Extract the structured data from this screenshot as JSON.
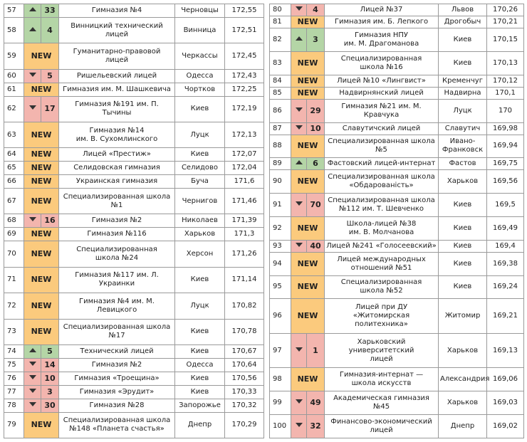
{
  "left": {
    "rows": [
      {
        "rank": 57,
        "trend": "up",
        "change": 33,
        "name": "Гимназия №4",
        "city": "Черновцы",
        "score": "172,55"
      },
      {
        "rank": 58,
        "trend": "up",
        "change": 4,
        "name": "Винницкий технический лицей",
        "city": "Винница",
        "score": "172,51"
      },
      {
        "rank": 59,
        "change": "NEW",
        "name": "Гуманитарно-правовой лицей",
        "city": "Черкассы",
        "score": "172,45"
      },
      {
        "rank": 60,
        "trend": "down",
        "change": 5,
        "name": "Ришельевский лицей",
        "city": "Одесса",
        "score": "172,43"
      },
      {
        "rank": 61,
        "change": "NEW",
        "name": "Гимназия им. М. Шашкевича",
        "city": "Чортков",
        "score": "172,25"
      },
      {
        "rank": 62,
        "trend": "down",
        "change": 17,
        "name": "Гимназия №191 им. П. Тычины",
        "city": "Киев",
        "score": "172,19"
      },
      {
        "rank": 63,
        "change": "NEW",
        "name": "Гимназия №14\nим. В. Сухомлинского",
        "city": "Луцк",
        "score": "172,13"
      },
      {
        "rank": 64,
        "change": "NEW",
        "name": "Лицей «Престиж»",
        "city": "Киев",
        "score": "172,07"
      },
      {
        "rank": 65,
        "change": "NEW",
        "name": "Селидовская гимназия",
        "city": "Селидово",
        "score": "172,04"
      },
      {
        "rank": 66,
        "change": "NEW",
        "name": "Украинская гимназия",
        "city": "Буча",
        "score": "171,6"
      },
      {
        "rank": 67,
        "change": "NEW",
        "name": "Специализированная школа №1",
        "city": "Чернигов",
        "score": "171,46"
      },
      {
        "rank": 68,
        "trend": "down",
        "change": 16,
        "name": "Гимназия №2",
        "city": "Николаев",
        "score": "171,39"
      },
      {
        "rank": 69,
        "change": "NEW",
        "name": "Гимназия №116",
        "city": "Харьков",
        "score": "171,3"
      },
      {
        "rank": 70,
        "change": "NEW",
        "name": "Специализированная\nшкола №24",
        "city": "Херсон",
        "score": "171,26"
      },
      {
        "rank": 71,
        "change": "NEW",
        "name": "Гимназия №117 им. Л. Украинки",
        "city": "Киев",
        "score": "171,14"
      },
      {
        "rank": 72,
        "change": "NEW",
        "name": "Гимназия №4 им. М. Левицкого",
        "city": "Луцк",
        "score": "170,82"
      },
      {
        "rank": 73,
        "change": "NEW",
        "name": "Специализированная школа №17",
        "city": "Киев",
        "score": "170,78"
      },
      {
        "rank": 74,
        "trend": "up",
        "change": 5,
        "name": "Технический лицей",
        "city": "Киев",
        "score": "170,67"
      },
      {
        "rank": 75,
        "trend": "down",
        "change": 14,
        "name": "Гимназия №2",
        "city": "Одесса",
        "score": "170,64"
      },
      {
        "rank": 76,
        "trend": "down",
        "change": 10,
        "name": "Гимназия «Троещина»",
        "city": "Киев",
        "score": "170,56"
      },
      {
        "rank": 77,
        "trend": "down",
        "change": 3,
        "name": "Гимназия «Эрудит»",
        "city": "Киев",
        "score": "170,33"
      },
      {
        "rank": 78,
        "trend": "down",
        "change": 30,
        "name": "Гимназия №28",
        "city": "Запорожье",
        "score": "170,32"
      },
      {
        "rank": 79,
        "change": "NEW",
        "name": "Специализированная школа\n№148 «Планета счастья»",
        "city": "Днепр",
        "score": "170,29"
      }
    ]
  },
  "right": {
    "rows": [
      {
        "rank": 80,
        "trend": "down",
        "change": 4,
        "name": "Лицей №37",
        "city": "Львов",
        "score": "170,26"
      },
      {
        "rank": 81,
        "change": "NEW",
        "name": "Гимназия им. Б. Лепкого",
        "city": "Дрогобыч",
        "score": "170,21"
      },
      {
        "rank": 82,
        "trend": "up",
        "change": 3,
        "name": "Гимназия НПУ\nим. М. Драгоманова",
        "city": "Киев",
        "score": "170,15"
      },
      {
        "rank": 83,
        "change": "NEW",
        "name": "Специализированная\nшкола №16",
        "city": "Киев",
        "score": "170,13"
      },
      {
        "rank": 84,
        "change": "NEW",
        "name": "Лицей №10 «Лингвист»",
        "city": "Кременчуг",
        "score": "170,12"
      },
      {
        "rank": 85,
        "change": "NEW",
        "name": "Надвирнянский лицей",
        "city": "Надвирна",
        "score": "170,1"
      },
      {
        "rank": 86,
        "trend": "down",
        "change": 29,
        "name": "Гимназия №21 им. М. Кравчука",
        "city": "Луцк",
        "score": "170"
      },
      {
        "rank": 87,
        "trend": "down",
        "change": 10,
        "name": "Славутичский лицей",
        "city": "Славутич",
        "score": "169,98"
      },
      {
        "rank": 88,
        "change": "NEW",
        "name": "Специализированная школа №5",
        "city": "Ивано-\nФранковск",
        "score": "169,94"
      },
      {
        "rank": 89,
        "trend": "up",
        "change": 6,
        "name": "Фастовский лицей-интернат",
        "city": "Фастов",
        "score": "169,75"
      },
      {
        "rank": 90,
        "change": "NEW",
        "name": "Специализированная школа\n«Обдарованість»",
        "city": "Харьков",
        "score": "169,56"
      },
      {
        "rank": 91,
        "trend": "down",
        "change": 70,
        "name": "Специализированная школа\n№112 им. Т. Шевченко",
        "city": "Киев",
        "score": "169,5"
      },
      {
        "rank": 92,
        "change": "NEW",
        "name": "Школа-лицей №38\nим. В. Молчанова",
        "city": "Киев",
        "score": "169,49"
      },
      {
        "rank": 93,
        "trend": "down",
        "change": 40,
        "name": "Лицей №241 «Голосеевский»",
        "city": "Киев",
        "score": "169,4"
      },
      {
        "rank": 94,
        "change": "NEW",
        "name": "Лицей международных\nотношений №51",
        "city": "Киев",
        "score": "169,38"
      },
      {
        "rank": 95,
        "change": "NEW",
        "name": "Специализированная\nшкола №52",
        "city": "Киев",
        "score": "169,24"
      },
      {
        "rank": 96,
        "change": "NEW",
        "name": "Лицей при ДУ «Житомирская\nполитехника»",
        "city": "Житомир",
        "score": "169,21"
      },
      {
        "rank": 97,
        "trend": "down",
        "change": 1,
        "name": "Харьковский университетский\nлицей",
        "city": "Харьков",
        "score": "169,13"
      },
      {
        "rank": 98,
        "change": "NEW",
        "name": "Гимназия-интернат —\nшкола искусств",
        "city": "Александрия",
        "score": "169,06"
      },
      {
        "rank": 99,
        "trend": "down",
        "change": 49,
        "name": "Академическая гимназия №45",
        "city": "Харьков",
        "score": "169,03"
      },
      {
        "rank": 100,
        "trend": "down",
        "change": 32,
        "name": "Финансово-экономический\nлицей",
        "city": "Днепр",
        "score": "169,02"
      }
    ]
  }
}
